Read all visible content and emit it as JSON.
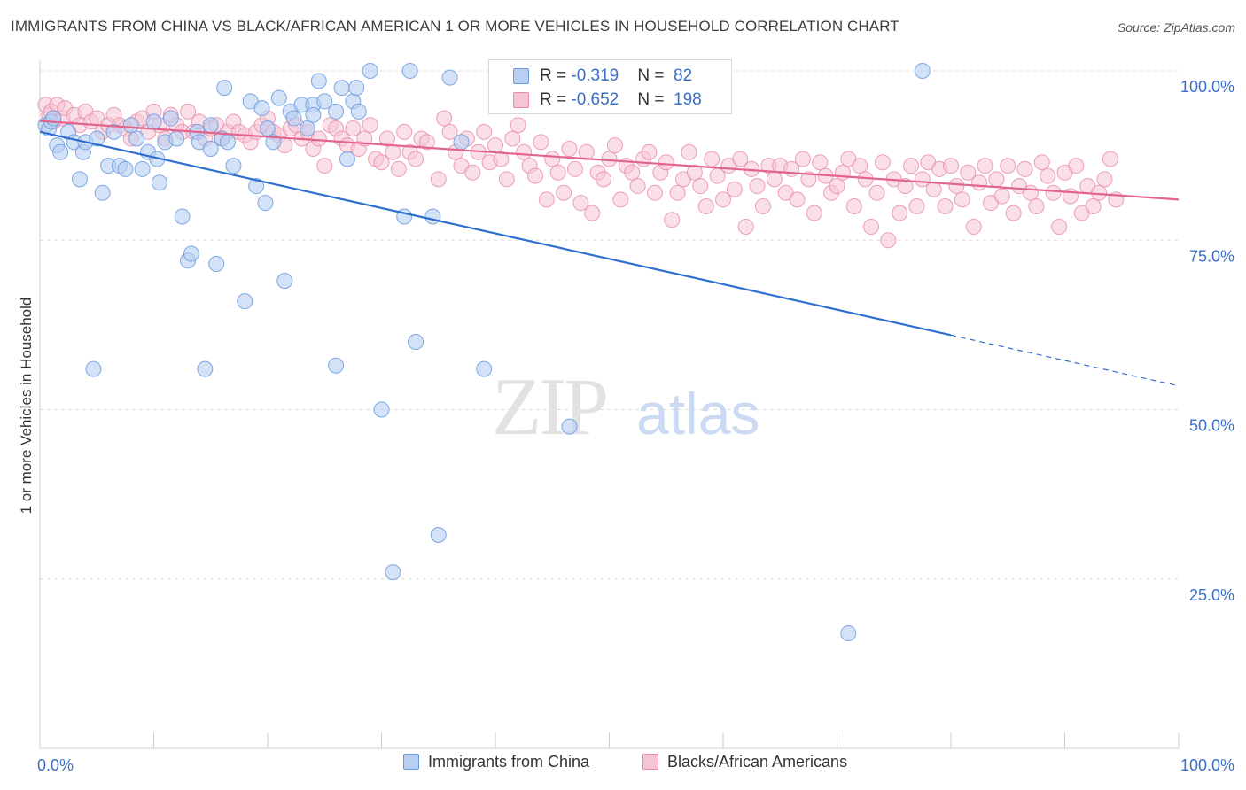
{
  "header": {
    "title": "IMMIGRANTS FROM CHINA VS BLACK/AFRICAN AMERICAN 1 OR MORE VEHICLES IN HOUSEHOLD CORRELATION CHART",
    "source": "Source: ZipAtlas.com"
  },
  "legend": {
    "rows": [
      {
        "r_label": "R = ",
        "r_value": "-0.319",
        "n_label": "N = ",
        "n_value": "82"
      },
      {
        "r_label": "R = ",
        "r_value": "-0.652",
        "n_label": "N = ",
        "n_value": "198"
      }
    ]
  },
  "bottom_legend": {
    "series1": "Immigrants from China",
    "series2": "Blacks/African Americans"
  },
  "chart_data": {
    "type": "scatter",
    "ylabel": "1 or more Vehicles in Household",
    "xlim": [
      0,
      100
    ],
    "ylim": [
      0,
      100
    ],
    "y_tick_labels": [
      "100.0%",
      "75.0%",
      "50.0%",
      "25.0%"
    ],
    "y_tick_values": [
      100,
      75,
      50,
      25
    ],
    "x_tick_labels": [
      "0.0%",
      "100.0%"
    ],
    "grid": "horizontal dashed",
    "colors": {
      "china": "#6a9be0",
      "china_fill": "#b8cff2",
      "black": "#e88aa8",
      "black_fill": "#f6c5d4",
      "china_line": "#2f6fd0",
      "black_line": "#e2648c",
      "tick_text": "#3a6fc9"
    },
    "series": [
      {
        "name": "Immigrants from China",
        "trend": {
          "x": [
            0,
            80
          ],
          "y": [
            91.0,
            61.0
          ],
          "dashed_to": [
            100,
            53.5
          ]
        },
        "points": [
          [
            0.5,
            92
          ],
          [
            0.8,
            91.5
          ],
          [
            1,
            92.5
          ],
          [
            1.2,
            93
          ],
          [
            1.5,
            89
          ],
          [
            1.8,
            88
          ],
          [
            2.5,
            91
          ],
          [
            3,
            89.5
          ],
          [
            3.5,
            84
          ],
          [
            3.8,
            88
          ],
          [
            4,
            89.5
          ],
          [
            5,
            90
          ],
          [
            5.5,
            82
          ],
          [
            6,
            86
          ],
          [
            6.5,
            91
          ],
          [
            7,
            86
          ],
          [
            7.5,
            85.5
          ],
          [
            8,
            92
          ],
          [
            8.5,
            90
          ],
          [
            9,
            85.5
          ],
          [
            9.5,
            88
          ],
          [
            10,
            92.5
          ],
          [
            10.3,
            87
          ],
          [
            10.5,
            83.5
          ],
          [
            11,
            89.5
          ],
          [
            11.5,
            93
          ],
          [
            12,
            90
          ],
          [
            12.5,
            78.5
          ],
          [
            13,
            72
          ],
          [
            13.3,
            73
          ],
          [
            13.8,
            91
          ],
          [
            14,
            89.5
          ],
          [
            14.5,
            56
          ],
          [
            15,
            92
          ],
          [
            15,
            88.5
          ],
          [
            15.5,
            71.5
          ],
          [
            16,
            90
          ],
          [
            16.2,
            97.5
          ],
          [
            16.5,
            89.5
          ],
          [
            17,
            86
          ],
          [
            18,
            66
          ],
          [
            18.5,
            95.5
          ],
          [
            19,
            83
          ],
          [
            19.5,
            94.5
          ],
          [
            19.8,
            80.5
          ],
          [
            20,
            91.5
          ],
          [
            20.5,
            89.5
          ],
          [
            21,
            96
          ],
          [
            21.5,
            69
          ],
          [
            22,
            94
          ],
          [
            22.3,
            93
          ],
          [
            23,
            95
          ],
          [
            23.5,
            91.5
          ],
          [
            24,
            95
          ],
          [
            24,
            93.5
          ],
          [
            24.5,
            98.5
          ],
          [
            25,
            95.5
          ],
          [
            26,
            94
          ],
          [
            26,
            56.5
          ],
          [
            26.5,
            97.5
          ],
          [
            27,
            87
          ],
          [
            27.5,
            95.5
          ],
          [
            27.8,
            97.5
          ],
          [
            28,
            94
          ],
          [
            29,
            100
          ],
          [
            30,
            50
          ],
          [
            31,
            26
          ],
          [
            32,
            78.5
          ],
          [
            32.5,
            100
          ],
          [
            33,
            60
          ],
          [
            34.5,
            78.5
          ],
          [
            35,
            31.5
          ],
          [
            36,
            99
          ],
          [
            37,
            89.5
          ],
          [
            39,
            56
          ],
          [
            46,
            100
          ],
          [
            46.5,
            47.5
          ],
          [
            71,
            17
          ],
          [
            77.5,
            100
          ],
          [
            4.7,
            56
          ]
        ]
      },
      {
        "name": "Blacks/African Americans",
        "trend": {
          "x": [
            0,
            100
          ],
          "y": [
            92.6,
            81.0
          ]
        },
        "points": [
          [
            0.5,
            95
          ],
          [
            0.8,
            93.5
          ],
          [
            1,
            94
          ],
          [
            1.2,
            92.5
          ],
          [
            1.5,
            95
          ],
          [
            2,
            93
          ],
          [
            2.2,
            94.5
          ],
          [
            3,
            93.5
          ],
          [
            3.5,
            92
          ],
          [
            4,
            94
          ],
          [
            4.5,
            92.5
          ],
          [
            5,
            93
          ],
          [
            5.5,
            91
          ],
          [
            6,
            92
          ],
          [
            6.5,
            93.5
          ],
          [
            7,
            92
          ],
          [
            7.5,
            91.5
          ],
          [
            8,
            90
          ],
          [
            8.5,
            92.5
          ],
          [
            9,
            93
          ],
          [
            9.5,
            91
          ],
          [
            10,
            94
          ],
          [
            10.5,
            92
          ],
          [
            11,
            90
          ],
          [
            11.5,
            93.5
          ],
          [
            12,
            92
          ],
          [
            12.5,
            91
          ],
          [
            13,
            94
          ],
          [
            13.5,
            91
          ],
          [
            14,
            92.5
          ],
          [
            14.5,
            90
          ],
          [
            15,
            91.5
          ],
          [
            15.5,
            92
          ],
          [
            16,
            90
          ],
          [
            16.5,
            91
          ],
          [
            17,
            92.5
          ],
          [
            17.5,
            91
          ],
          [
            18,
            90.5
          ],
          [
            18.5,
            89.5
          ],
          [
            19,
            91
          ],
          [
            19.5,
            92
          ],
          [
            20,
            93
          ],
          [
            20.5,
            91
          ],
          [
            21,
            90.5
          ],
          [
            21.5,
            89
          ],
          [
            22,
            91.5
          ],
          [
            22.5,
            92
          ],
          [
            23,
            90
          ],
          [
            23.5,
            91
          ],
          [
            24,
            88.5
          ],
          [
            24.5,
            90
          ],
          [
            25,
            86
          ],
          [
            25.5,
            92
          ],
          [
            26,
            91.5
          ],
          [
            26.5,
            90
          ],
          [
            27,
            89
          ],
          [
            27.5,
            91.5
          ],
          [
            28,
            88.5
          ],
          [
            28.5,
            90
          ],
          [
            29,
            92
          ],
          [
            29.5,
            87
          ],
          [
            30,
            86.5
          ],
          [
            30.5,
            90
          ],
          [
            31,
            88
          ],
          [
            31.5,
            85.5
          ],
          [
            32,
            91
          ],
          [
            32.5,
            88
          ],
          [
            33,
            87
          ],
          [
            33.5,
            90
          ],
          [
            34,
            89.5
          ],
          [
            35,
            84
          ],
          [
            35.5,
            93
          ],
          [
            36,
            91
          ],
          [
            36.5,
            88
          ],
          [
            37,
            86
          ],
          [
            37.5,
            90
          ],
          [
            38,
            85
          ],
          [
            38.5,
            88
          ],
          [
            39,
            91
          ],
          [
            39.5,
            86.5
          ],
          [
            40,
            89
          ],
          [
            40.5,
            87
          ],
          [
            41,
            84
          ],
          [
            41.5,
            90
          ],
          [
            42,
            92
          ],
          [
            42.5,
            88
          ],
          [
            43,
            86
          ],
          [
            43.5,
            84.5
          ],
          [
            44,
            89.5
          ],
          [
            44.5,
            81
          ],
          [
            45,
            87
          ],
          [
            45.5,
            85
          ],
          [
            46,
            82
          ],
          [
            46.5,
            88.5
          ],
          [
            47,
            85.5
          ],
          [
            47.5,
            80.5
          ],
          [
            48,
            88
          ],
          [
            48.5,
            79
          ],
          [
            49,
            85
          ],
          [
            49.5,
            84
          ],
          [
            50,
            87
          ],
          [
            50.5,
            89
          ],
          [
            51,
            81
          ],
          [
            51.5,
            86
          ],
          [
            52,
            85
          ],
          [
            52.5,
            83
          ],
          [
            53,
            87
          ],
          [
            53.5,
            88
          ],
          [
            54,
            82
          ],
          [
            54.5,
            85
          ],
          [
            55,
            86.5
          ],
          [
            55.5,
            78
          ],
          [
            56,
            82
          ],
          [
            56.5,
            84
          ],
          [
            57,
            88
          ],
          [
            57.5,
            85
          ],
          [
            58,
            83
          ],
          [
            58.5,
            80
          ],
          [
            59,
            87
          ],
          [
            59.5,
            84.5
          ],
          [
            60,
            81
          ],
          [
            60.5,
            86
          ],
          [
            61,
            82.5
          ],
          [
            61.5,
            87
          ],
          [
            62,
            77
          ],
          [
            62.5,
            85.5
          ],
          [
            63,
            83
          ],
          [
            63.5,
            80
          ],
          [
            64,
            86
          ],
          [
            64.5,
            84
          ],
          [
            65,
            86
          ],
          [
            65.5,
            82
          ],
          [
            66,
            85.5
          ],
          [
            66.5,
            81
          ],
          [
            67,
            87
          ],
          [
            67.5,
            84
          ],
          [
            68,
            79
          ],
          [
            68.5,
            86.5
          ],
          [
            69,
            84.5
          ],
          [
            69.5,
            82
          ],
          [
            70,
            83
          ],
          [
            70.5,
            85
          ],
          [
            71,
            87
          ],
          [
            71.5,
            80
          ],
          [
            72,
            86
          ],
          [
            72.5,
            84
          ],
          [
            73,
            77
          ],
          [
            73.5,
            82
          ],
          [
            74,
            86.5
          ],
          [
            74.5,
            75
          ],
          [
            75,
            84
          ],
          [
            75.5,
            79
          ],
          [
            76,
            83
          ],
          [
            76.5,
            86
          ],
          [
            77,
            80
          ],
          [
            77.5,
            84
          ],
          [
            78,
            86.5
          ],
          [
            78.5,
            82.5
          ],
          [
            79,
            85.5
          ],
          [
            79.5,
            80
          ],
          [
            80,
            86
          ],
          [
            80.5,
            83
          ],
          [
            81,
            81
          ],
          [
            81.5,
            85
          ],
          [
            82,
            77
          ],
          [
            82.5,
            83.5
          ],
          [
            83,
            86
          ],
          [
            83.5,
            80.5
          ],
          [
            84,
            84
          ],
          [
            84.5,
            81.5
          ],
          [
            85,
            86
          ],
          [
            85.5,
            79
          ],
          [
            86,
            83
          ],
          [
            86.5,
            85.5
          ],
          [
            87,
            82
          ],
          [
            87.5,
            80
          ],
          [
            88,
            86.5
          ],
          [
            88.5,
            84.5
          ],
          [
            89,
            82
          ],
          [
            89.5,
            77
          ],
          [
            90,
            85
          ],
          [
            90.5,
            81.5
          ],
          [
            91,
            86
          ],
          [
            91.5,
            79
          ],
          [
            92,
            83
          ],
          [
            92.5,
            80
          ],
          [
            93,
            82
          ],
          [
            93.5,
            84
          ],
          [
            94,
            87
          ],
          [
            94.5,
            81
          ]
        ]
      }
    ]
  }
}
